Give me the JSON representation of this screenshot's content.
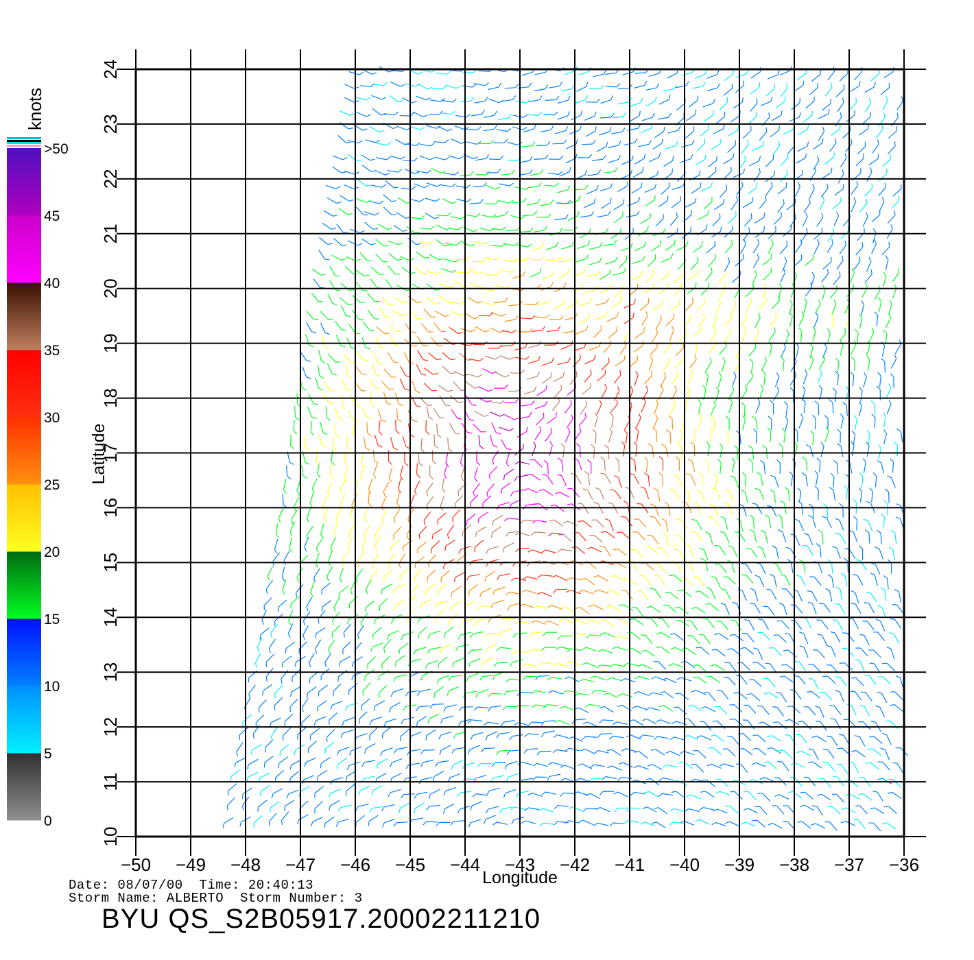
{
  "map": {
    "x_axis_label": "Longitude",
    "y_axis_label": "Latitude",
    "lon_ticks": [
      -50,
      -49,
      -48,
      -47,
      -46,
      -45,
      -44,
      -43,
      -42,
      -41,
      -40,
      -39,
      -38,
      -37,
      -36
    ],
    "lat_ticks": [
      10,
      11,
      12,
      13,
      14,
      15,
      16,
      17,
      18,
      19,
      20,
      21,
      22,
      23,
      24
    ],
    "lon_range": [
      -50,
      -36
    ],
    "lat_range": [
      10,
      24
    ],
    "grid": true,
    "content": "scatterometer wind barbs colored by speed; strongest winds (purple/red) around -43 lon, 17 lat"
  },
  "colorbar": {
    "unit_label": "knots",
    "labels": [
      ">50",
      "45",
      "40",
      "35",
      "30",
      "25",
      "20",
      "15",
      "10",
      "5",
      "0"
    ],
    "segments": [
      {
        "from": 0,
        "to": 5,
        "top": "#303030",
        "bottom": "#909090"
      },
      {
        "from": 5,
        "to": 10,
        "top": "#0090ff",
        "bottom": "#00f0ff"
      },
      {
        "from": 10,
        "to": 15,
        "top": "#0010ff",
        "bottom": "#0080ff"
      },
      {
        "from": 15,
        "to": 20,
        "top": "#006a10",
        "bottom": "#00ff20"
      },
      {
        "from": 20,
        "to": 25,
        "top": "#ffc000",
        "bottom": "#ffff20"
      },
      {
        "from": 25,
        "to": 30,
        "top": "#ff3000",
        "bottom": "#ff9010"
      },
      {
        "from": 30,
        "to": 35,
        "top": "#ff0000",
        "bottom": "#ff3010"
      },
      {
        "from": 35,
        "to": 40,
        "top": "#3a1000",
        "bottom": "#c08060"
      },
      {
        "from": 40,
        "to": 45,
        "top": "#cc00cc",
        "bottom": "#ff00ff"
      },
      {
        "from": 45,
        "to": 50,
        "top": "#5010c0",
        "bottom": "#b000c0"
      }
    ]
  },
  "footer": {
    "date_line": "Date: 08/07/00  Time: 20:40:13",
    "storm_line": "Storm Name: ALBERTO  Storm Number: 3",
    "file_id": "BYU QS_S2B05917.20002211210"
  }
}
